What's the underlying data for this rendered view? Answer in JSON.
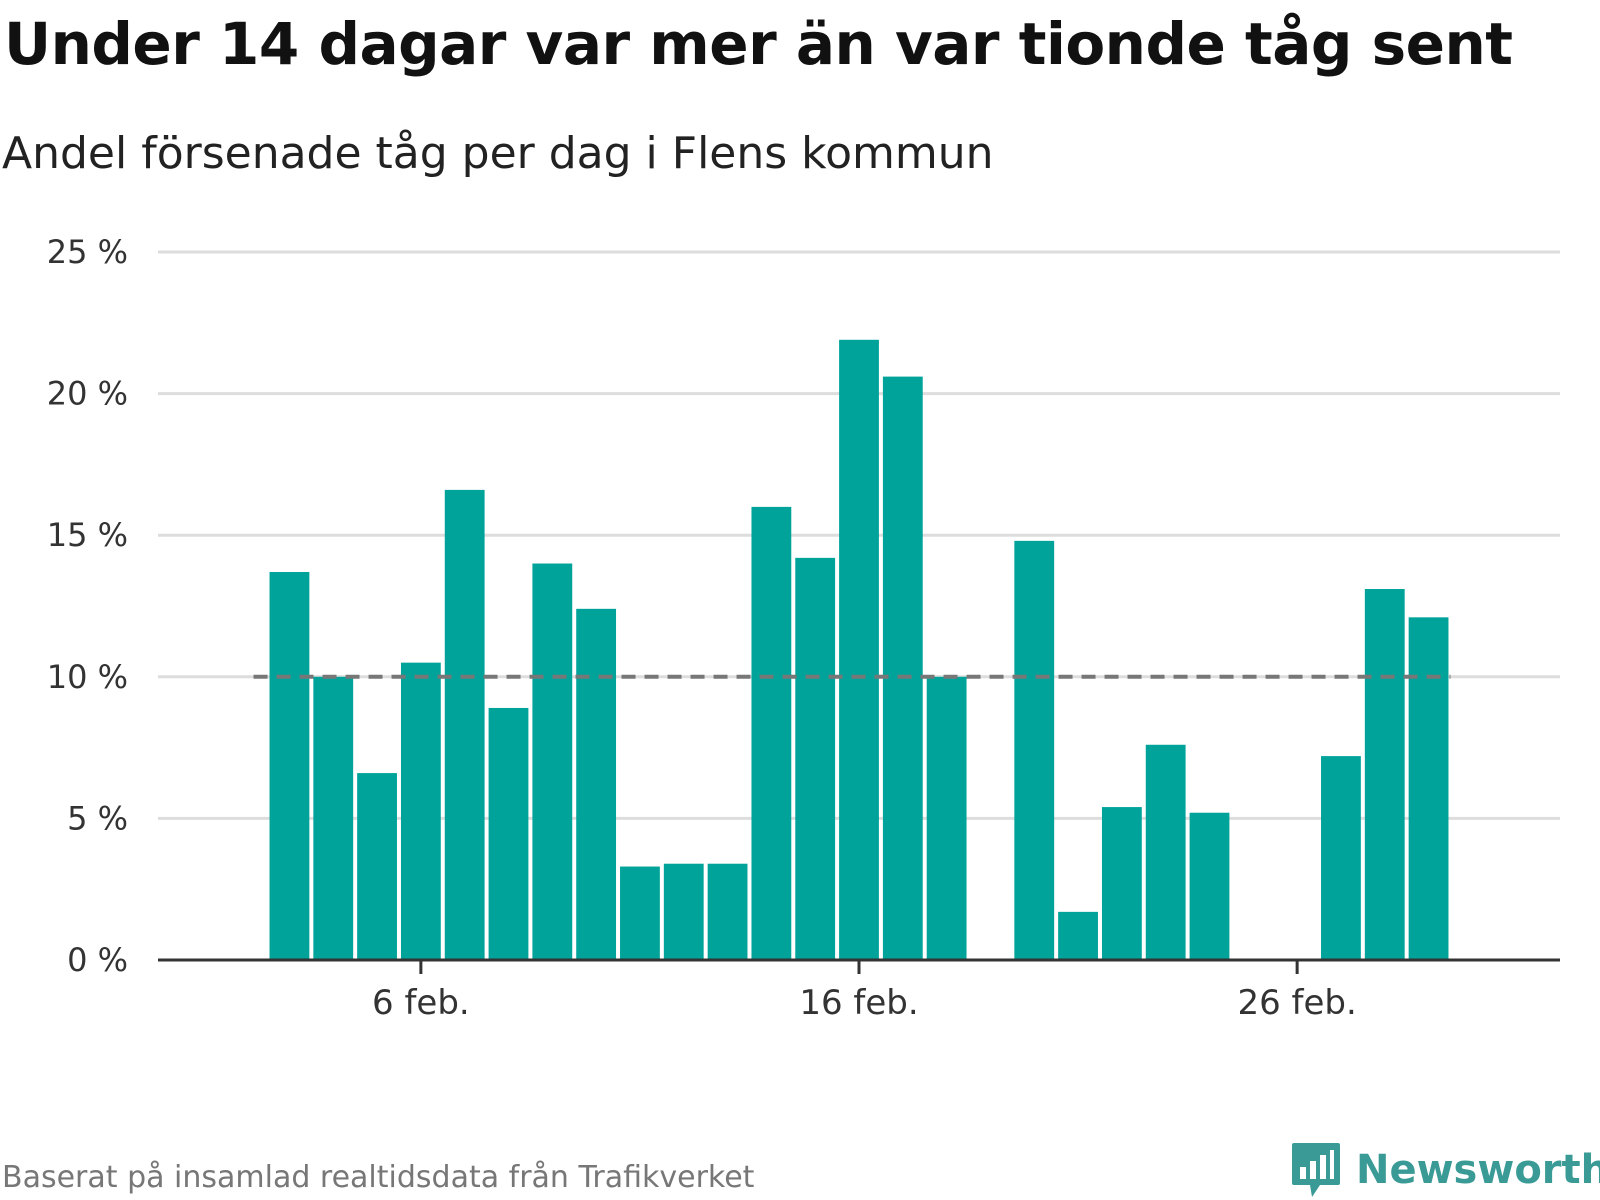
{
  "header": {
    "title": "Under 14 dagar var mer än var tionde tåg sent",
    "subtitle": "Andel försenade tåg per dag i Flens kommun"
  },
  "footer": {
    "source": "Baserat på insamlad realtidsdata från Trafikverket",
    "brand": "Newsworthy"
  },
  "colors": {
    "bar": "#00a39a",
    "reference_line": "#777777",
    "grid": "#dddddd",
    "axis": "#333333",
    "brand": "#3a9a96"
  },
  "chart_data": {
    "type": "bar",
    "title": "Under 14 dagar var mer än var tionde tåg sent",
    "subtitle": "Andel försenade tåg per dag i Flens kommun",
    "xlabel": "",
    "ylabel": "",
    "x_unit": "day of February",
    "x_domain": [
      0,
      32
    ],
    "days": [
      3,
      4,
      5,
      6,
      7,
      8,
      9,
      10,
      11,
      12,
      13,
      14,
      15,
      16,
      17,
      18,
      20,
      21,
      22,
      23,
      24,
      25,
      26,
      27,
      28,
      29
    ],
    "values": [
      13.7,
      10.0,
      6.6,
      10.5,
      16.6,
      8.9,
      14.0,
      12.4,
      3.3,
      3.4,
      3.4,
      16.0,
      14.2,
      21.9,
      20.6,
      10.0,
      14.8,
      1.7,
      5.4,
      7.6,
      5.2,
      0,
      0,
      7.2,
      13.1,
      12.1
    ],
    "reference_line": {
      "value": 10,
      "style": "dashed"
    },
    "ylim": [
      0,
      25
    ],
    "y_ticks": [
      0,
      5,
      10,
      15,
      20,
      25
    ],
    "y_tick_labels": [
      "0 %",
      "5 %",
      "10 %",
      "15 %",
      "20 %",
      "25 %"
    ],
    "x_ticks": [
      6,
      16,
      26
    ],
    "x_tick_labels": [
      "6 feb.",
      "16 feb.",
      "26 feb."
    ],
    "grid": true,
    "legend": "none"
  }
}
